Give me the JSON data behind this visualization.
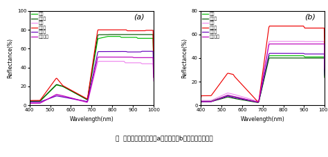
{
  "species": [
    "香樟",
    "广玉兰",
    "石楊",
    "夹竹桃",
    "千头柏",
    "紫叶小诼"
  ],
  "colors_a": [
    "#00bb00",
    "#005500",
    "#ee88ee",
    "#ee0000",
    "#6600bb",
    "#bb00bb"
  ],
  "colors_b": [
    "#00bb00",
    "#005500",
    "#ee88ee",
    "#ee0000",
    "#6600bb",
    "#bb00bb"
  ],
  "xlabel": "Wavelength(nm)",
  "ylabel_a": "Reflectance(%)",
  "ylabel_b": "Reflectance(%)",
  "label_a": "(a)",
  "label_b": "(b)",
  "xlim": [
    400,
    1000
  ],
  "ylim_a": [
    0,
    100
  ],
  "ylim_b": [
    0,
    80
  ],
  "caption": "图  及灌木乔木在夏季（a）和冬季（b）的光谱均值曲线",
  "x_ticks": [
    400,
    500,
    600,
    700,
    800,
    900,
    1000
  ],
  "y_ticks_a": [
    0,
    20,
    40,
    60,
    80,
    100
  ],
  "y_ticks_b": [
    0,
    20,
    40,
    60,
    80
  ]
}
